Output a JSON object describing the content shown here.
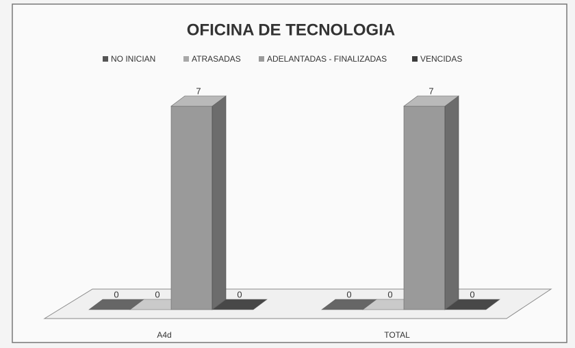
{
  "chart_data": {
    "type": "bar3d",
    "title": "OFICINA DE TECNOLOGIA",
    "categories": [
      "A4d",
      "TOTAL"
    ],
    "series": [
      {
        "name": "NO INICIAN",
        "color": "#555555",
        "values": [
          0,
          0
        ]
      },
      {
        "name": "ATRASADAS",
        "color": "#a8a8a8",
        "values": [
          0,
          0
        ]
      },
      {
        "name": "ADELANTADAS - FINALIZADAS",
        "color": "#9a9a9a",
        "values": [
          7,
          7
        ]
      },
      {
        "name": "VENCIDAS",
        "color": "#3c3c3c",
        "values": [
          0,
          0
        ]
      }
    ],
    "legend": "top"
  }
}
